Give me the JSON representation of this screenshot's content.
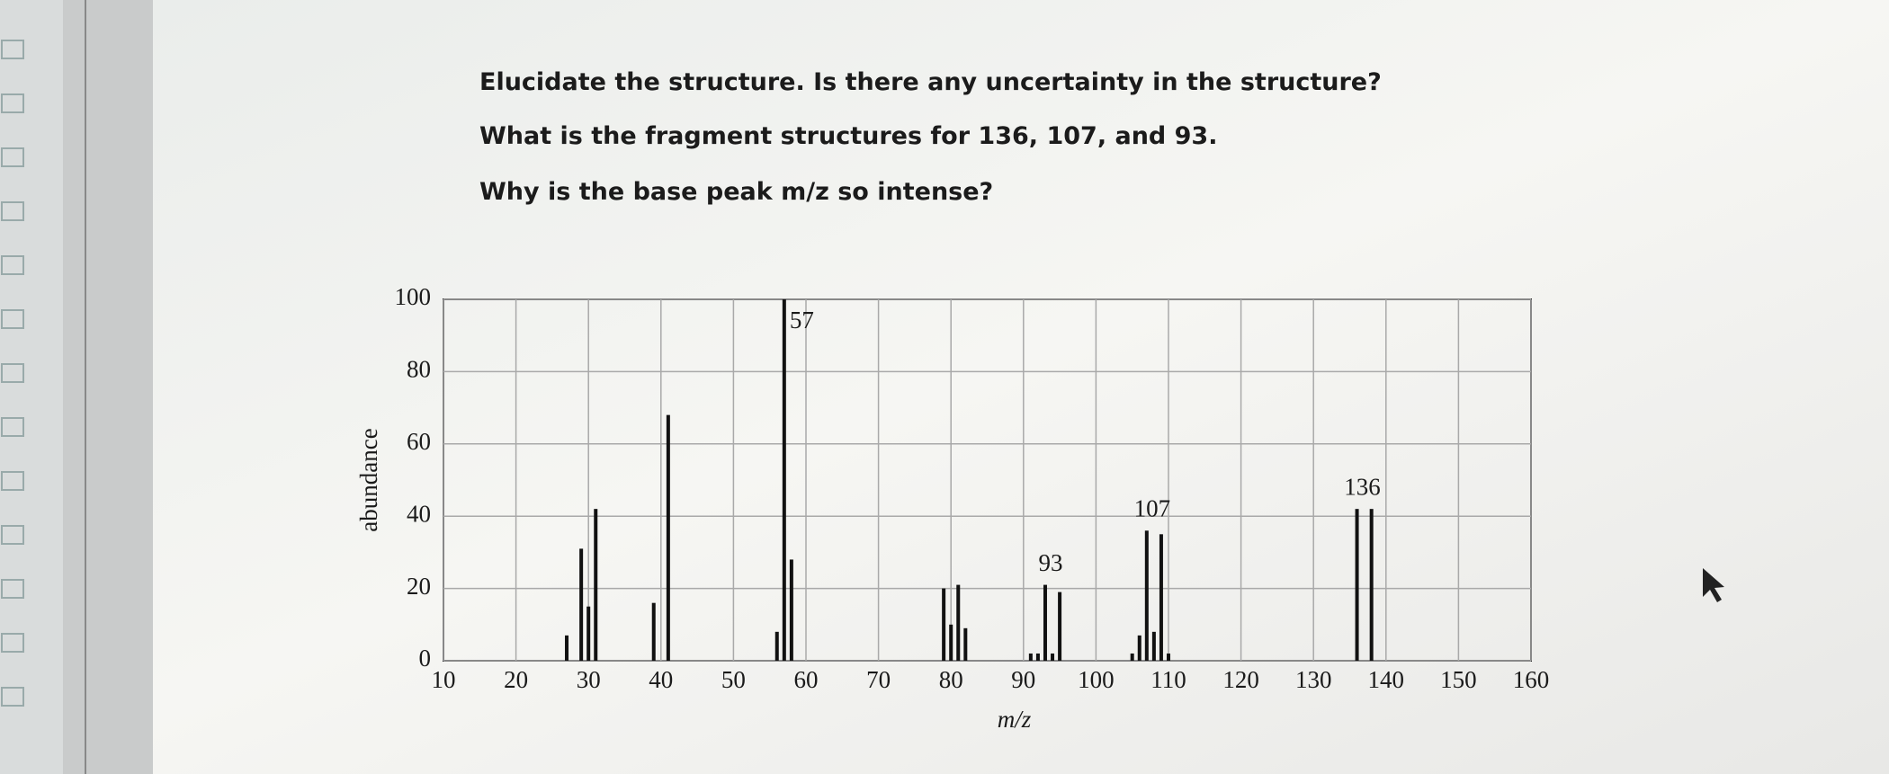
{
  "question": [
    "Elucidate the structure. Is there any uncertainty in the structure?",
    "What is the fragment structures for 136, 107, and 93.",
    "Why is the base peak m/z so intense?"
  ],
  "chart_data": {
    "type": "bar",
    "x_label": "m/z",
    "y_label": "abundance",
    "x": [
      27,
      29,
      30,
      31,
      39,
      41,
      56,
      57,
      58,
      79,
      80,
      81,
      82,
      91,
      92,
      93,
      94,
      95,
      105,
      106,
      107,
      108,
      109,
      110,
      136,
      138
    ],
    "values": [
      7,
      31,
      15,
      42,
      16,
      68,
      8,
      100,
      28,
      20,
      10,
      21,
      9,
      2,
      2,
      21,
      2,
      19,
      2,
      7,
      36,
      8,
      35,
      2,
      42,
      42
    ],
    "color": "#111111",
    "xlim": [
      10,
      160
    ],
    "xticks": [
      10,
      20,
      30,
      40,
      50,
      60,
      70,
      80,
      90,
      100,
      110,
      120,
      130,
      140,
      150,
      160
    ],
    "ylim": [
      0,
      100
    ],
    "yticks": [
      0,
      20,
      40,
      60,
      80,
      100
    ],
    "grid": true,
    "annotations": [
      {
        "text": "57",
        "x": 57
      },
      {
        "text": "93",
        "x": 93
      },
      {
        "text": "107",
        "x": 107
      },
      {
        "text": "136",
        "x": 136
      }
    ]
  }
}
